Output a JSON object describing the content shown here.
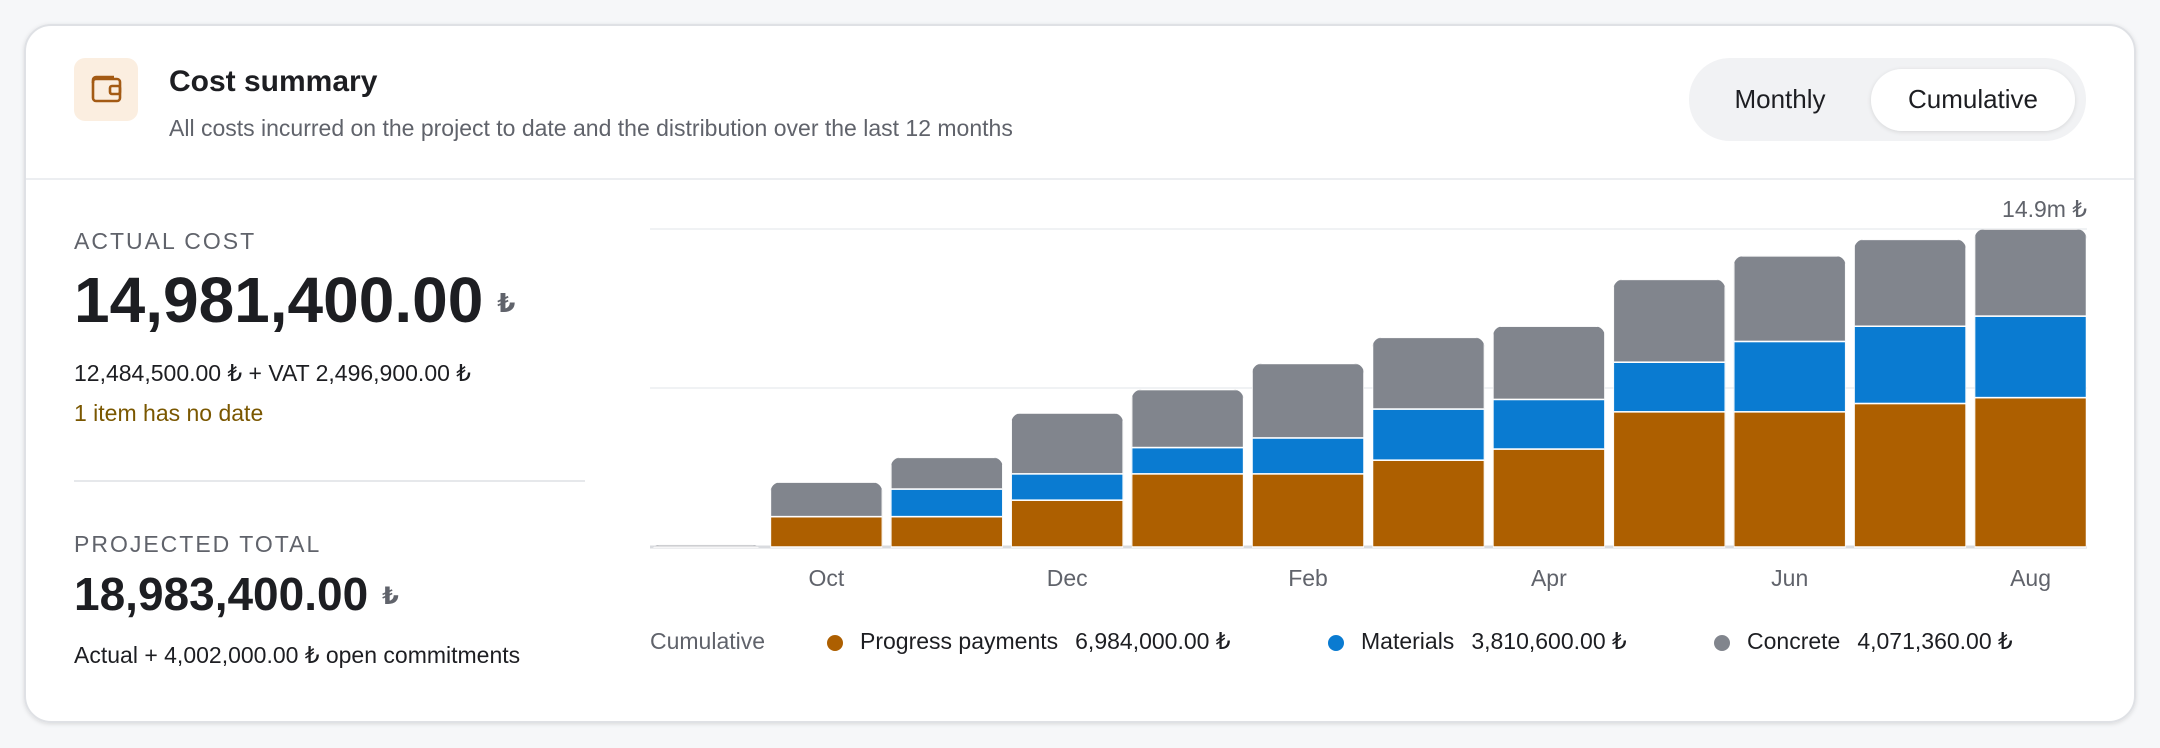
{
  "header": {
    "title": "Cost summary",
    "subtitle": "All costs incurred on the project to date and the distribution over the last 12 months",
    "toggle": {
      "options": [
        "Monthly",
        "Cumulative"
      ],
      "active": 1
    }
  },
  "summary": {
    "actual_label": "ACTUAL COST",
    "actual_value": "14,981,400.00",
    "currency": "₺",
    "actual_breakdown": "12,484,500.00 ₺ + VAT 2,496,900.00 ₺",
    "warning": "1 item has no date",
    "projected_label": "PROJECTED TOTAL",
    "projected_value": "18,983,400.00",
    "projected_note": "Actual + 4,002,000.00 ₺ open commitments"
  },
  "chart_data": {
    "type": "stacked_bar",
    "legend_title": "Cumulative",
    "categories": [
      null,
      "Oct",
      null,
      "Dec",
      null,
      "Feb",
      null,
      "Apr",
      null,
      "Jun",
      null,
      "Aug"
    ],
    "series": [
      {
        "name": "Progress payments",
        "color": "#ad5f00",
        "legend_value": "6,984,000.00 ₺",
        "values": [
          0,
          1420000,
          1420000,
          2190000,
          3420000,
          3420000,
          4060000,
          4580000,
          6320000,
          6320000,
          6710000,
          6984000
        ]
      },
      {
        "name": "Materials",
        "color": "#0a7bd1",
        "legend_value": "3,810,600.00 ₺",
        "values": [
          0,
          0,
          1290000,
          1230000,
          1230000,
          1680000,
          2390000,
          2320000,
          2320000,
          3290000,
          3610000,
          3810600
        ]
      },
      {
        "name": "Concrete",
        "color": "#81858d",
        "legend_value": "4,071,360.00 ₺",
        "values": [
          100000,
          1610000,
          1480000,
          2840000,
          2710000,
          3480000,
          3350000,
          3420000,
          3870000,
          4000000,
          4060000,
          4071360
        ]
      }
    ],
    "ylim": [
      0,
      14865960
    ],
    "yticks": [
      {
        "value": 0,
        "label": null
      },
      {
        "value": 7432980,
        "label": null
      },
      {
        "value": 14865960,
        "label": "14.9m ₺"
      }
    ],
    "grid": true
  }
}
